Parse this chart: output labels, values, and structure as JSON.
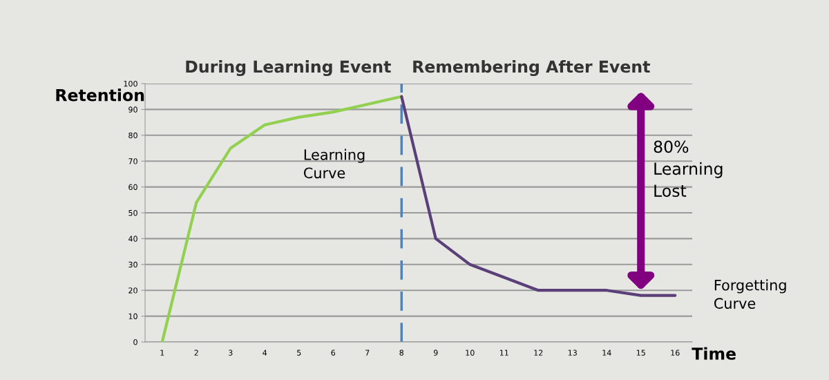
{
  "chart_data": {
    "type": "line",
    "xlabel": "Time",
    "ylabel": "Retention",
    "categories": [
      "1",
      "2",
      "3",
      "4",
      "5",
      "6",
      "7",
      "8",
      "9",
      "10",
      "11",
      "12",
      "13",
      "14",
      "15",
      "16"
    ],
    "series": [
      {
        "name": "Learning Curve",
        "color": "#92d050",
        "values": [
          0,
          54,
          75,
          84,
          87,
          89,
          92,
          95,
          null,
          null,
          null,
          null,
          null,
          null,
          null,
          null
        ]
      },
      {
        "name": "Forgetting Curve",
        "color": "#5b3f78",
        "values": [
          null,
          null,
          null,
          null,
          null,
          null,
          null,
          95,
          40,
          30,
          25,
          20,
          20,
          20,
          18,
          18
        ]
      }
    ],
    "ylim": [
      0,
      100
    ],
    "yticks": [
      0,
      10,
      20,
      30,
      40,
      50,
      60,
      70,
      80,
      90,
      100
    ],
    "grid": "y",
    "ref_lines": [
      {
        "axis": "x",
        "value": "8",
        "color": "#4f81bd",
        "line_style": "dashed"
      }
    ],
    "annotations": [
      "During Learning Event",
      "Remembering After Event",
      "80%\nLearning\nLost"
    ]
  }
}
